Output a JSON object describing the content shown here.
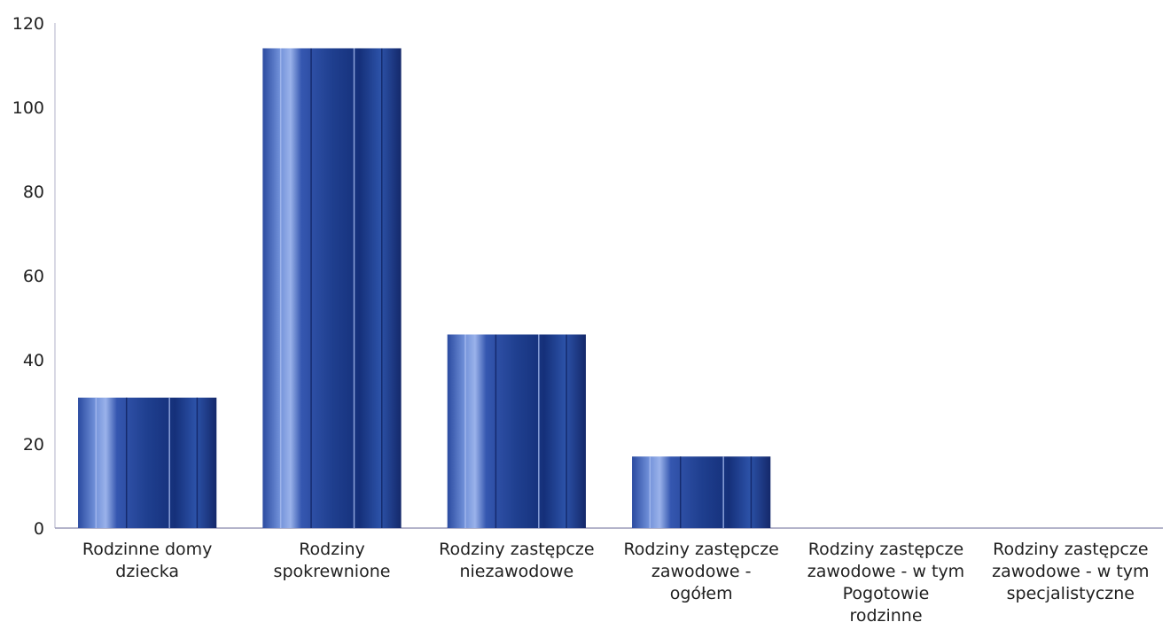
{
  "chart_data": {
    "type": "bar",
    "categories": [
      [
        "Rodzinne domy",
        "dziecka"
      ],
      [
        "Rodziny",
        "spokrewnione"
      ],
      [
        "Rodziny zastępcze",
        "niezawodowe"
      ],
      [
        "Rodziny zastępcze",
        "zawodowe -",
        "ogółem"
      ],
      [
        "Rodziny zastępcze",
        "zawodowe - w tym",
        "Pogotowie",
        "rodzinne"
      ],
      [
        "Rodziny zastępcze",
        "zawodowe - w tym",
        "specjalistyczne"
      ]
    ],
    "values": [
      31,
      114,
      46,
      17,
      0,
      0
    ],
    "ylim": [
      0,
      120
    ],
    "yticks": [
      0,
      20,
      40,
      60,
      80,
      100,
      120
    ],
    "grid": false,
    "legend": "none",
    "colors": {
      "bar": "#1f3f8f",
      "bar_light": "#6f8fd8",
      "bar_dark": "#14286a",
      "axis": "#9a9ab8"
    }
  }
}
